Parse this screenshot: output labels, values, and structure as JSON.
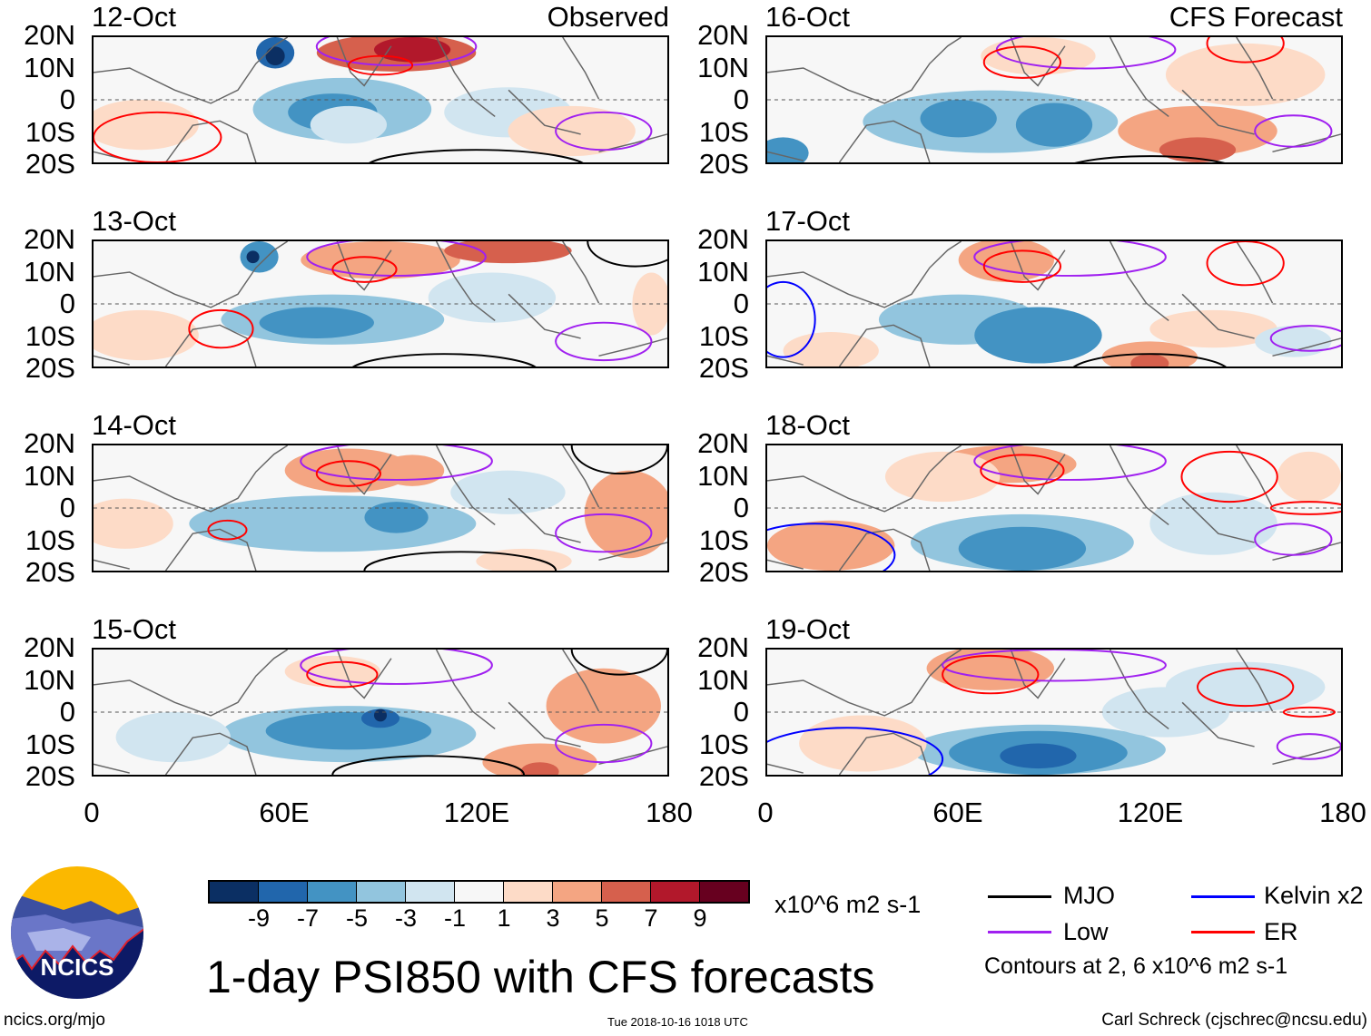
{
  "chart_data": {
    "type": "heatmap",
    "title": "1-day PSI850 with CFS forecasts",
    "variable": "PSI850",
    "units": "x10^6 m2 s-1",
    "column_labels": {
      "left": "Observed",
      "right": "CFS Forecast"
    },
    "panels": [
      {
        "date": "12-Oct",
        "column": "left"
      },
      {
        "date": "13-Oct",
        "column": "left"
      },
      {
        "date": "14-Oct",
        "column": "left"
      },
      {
        "date": "15-Oct",
        "column": "left"
      },
      {
        "date": "16-Oct",
        "column": "right"
      },
      {
        "date": "17-Oct",
        "column": "right"
      },
      {
        "date": "18-Oct",
        "column": "right"
      },
      {
        "date": "19-Oct",
        "column": "right"
      }
    ],
    "y_ticks": [
      "20N",
      "10N",
      "0",
      "10S",
      "20S"
    ],
    "x_ticks": [
      "0",
      "60E",
      "120E",
      "180"
    ],
    "xlim": [
      0,
      180
    ],
    "ylim": [
      -20,
      20
    ],
    "colorbar": {
      "labels": [
        "-9",
        "-7",
        "-5",
        "-3",
        "-1",
        "1",
        "3",
        "5",
        "7",
        "9"
      ],
      "colors": [
        "#0b2f63",
        "#2166ac",
        "#4393c3",
        "#92c5de",
        "#d1e5f0",
        "#f7f7f7",
        "#fddbc7",
        "#f4a582",
        "#d6604d",
        "#b2182b",
        "#67001f"
      ]
    },
    "legend": [
      {
        "label": "MJO",
        "color": "#000000"
      },
      {
        "label": "Kelvin x2",
        "color": "#0000ff"
      },
      {
        "label": "Low",
        "color": "#a020f0"
      },
      {
        "label": "ER",
        "color": "#ff0000"
      }
    ],
    "contour_note": "Contours at 2, 6 x10^6 m2 s-1"
  },
  "footer": {
    "logo_text": "NCICS",
    "url": "ncics.org/mjo",
    "timestamp": "Tue 2018-10-16 1018 UTC",
    "author": "Carl Schreck (cjschrec@ncsu.edu)"
  }
}
